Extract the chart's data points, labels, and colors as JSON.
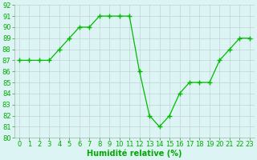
{
  "x": [
    0,
    1,
    2,
    3,
    4,
    5,
    6,
    7,
    8,
    9,
    10,
    11,
    12,
    13,
    14,
    15,
    16,
    17,
    18,
    19,
    20,
    21,
    22,
    23
  ],
  "y": [
    87,
    87,
    87,
    87,
    88,
    89,
    90,
    90,
    91,
    91,
    91,
    91,
    86,
    82,
    81,
    82,
    84,
    85,
    85,
    85,
    87,
    88,
    89,
    89
  ],
  "line_color": "#00bb00",
  "marker": "+",
  "marker_size": 4,
  "marker_color": "#00bb00",
  "bg_color": "#ddf4f4",
  "grid_color": "#bbcccc",
  "xlabel": "Humidité relative (%)",
  "xlabel_color": "#00aa00",
  "xlabel_fontsize": 7,
  "tick_fontsize": 6,
  "tick_color": "#00aa00",
  "ylim": [
    80,
    92
  ],
  "xlim": [
    -0.5,
    23.5
  ],
  "yticks": [
    80,
    81,
    82,
    83,
    84,
    85,
    86,
    87,
    88,
    89,
    90,
    91,
    92
  ],
  "xticks": [
    0,
    1,
    2,
    3,
    4,
    5,
    6,
    7,
    8,
    9,
    10,
    11,
    12,
    13,
    14,
    15,
    16,
    17,
    18,
    19,
    20,
    21,
    22,
    23
  ]
}
